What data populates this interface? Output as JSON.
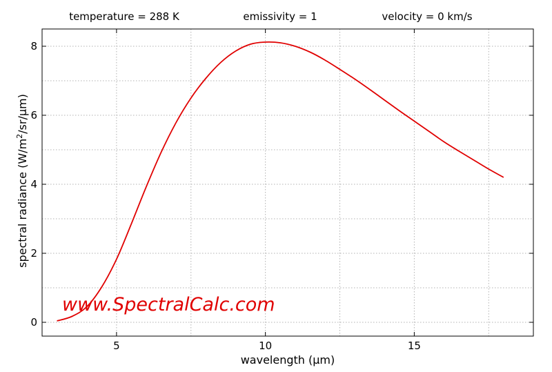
{
  "header": {
    "temperature": "temperature = 288 K",
    "emissivity": "emissivity = 1",
    "velocity": "velocity = 0 km/s"
  },
  "watermark": "www.SpectralCalc.com",
  "chart_data": {
    "type": "line",
    "xlabel": "wavelength (µm)",
    "ylabel_main": "spectral radiance (W/m",
    "ylabel_sup": "2",
    "ylabel_tail": "/sr/µm)",
    "xlim": [
      2.5,
      19
    ],
    "ylim": [
      -0.4,
      8.5
    ],
    "x_ticks": [
      5,
      10,
      15
    ],
    "y_ticks": [
      0,
      2,
      4,
      6,
      8
    ],
    "x_tick_labels": [
      "5",
      "10",
      "15"
    ],
    "y_tick_labels": [
      "0",
      "2",
      "4",
      "6",
      "8"
    ],
    "x_minor_grid": [
      2.5,
      7.5,
      12.5,
      17.5
    ],
    "y_minor_grid": [
      1,
      3,
      5,
      7
    ],
    "grid": true,
    "line_color": "#e00000",
    "series": [
      {
        "x": [
          3.0,
          3.5,
          4.0,
          4.5,
          5.0,
          5.5,
          6.0,
          6.5,
          7.0,
          7.5,
          8.0,
          8.5,
          9.0,
          9.5,
          10.0,
          10.5,
          11.0,
          11.5,
          12.0,
          12.5,
          13.0,
          13.5,
          14.0,
          14.5,
          15.0,
          15.5,
          16.0,
          16.5,
          17.0,
          17.5,
          18.0
        ],
        "y": [
          0.04,
          0.17,
          0.45,
          1.02,
          1.83,
          2.86,
          3.93,
          4.93,
          5.79,
          6.5,
          7.07,
          7.53,
          7.86,
          8.06,
          8.12,
          8.1,
          8.0,
          7.83,
          7.6,
          7.33,
          7.05,
          6.75,
          6.44,
          6.13,
          5.83,
          5.53,
          5.23,
          4.96,
          4.7,
          4.44,
          4.2
        ]
      }
    ]
  }
}
